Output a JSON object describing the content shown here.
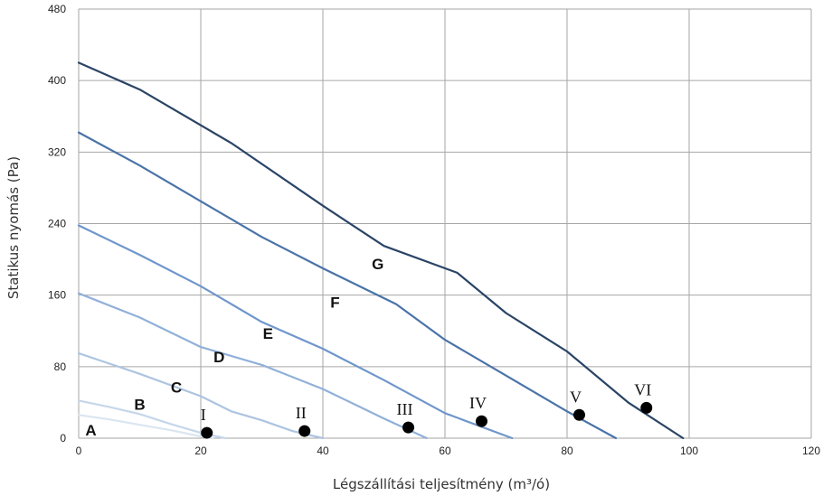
{
  "chart_data": {
    "type": "line",
    "xlabel": "Légszállítási teljesítmény (m³/ó)",
    "ylabel": "Statikus nyomás (Pa)",
    "xlim": [
      0,
      120
    ],
    "ylim": [
      0,
      480
    ],
    "xticks": [
      0,
      20,
      40,
      60,
      80,
      100,
      120
    ],
    "yticks": [
      0,
      80,
      160,
      240,
      320,
      400,
      480
    ],
    "grid": true,
    "series": [
      {
        "name": "A",
        "color": "#dbe5f1",
        "x": [
          0,
          5,
          10,
          15,
          20,
          22
        ],
        "y": [
          26,
          21,
          15,
          9,
          2,
          0
        ]
      },
      {
        "name": "B",
        "color": "#c6d6ea",
        "x": [
          0,
          5,
          10,
          15,
          20,
          24
        ],
        "y": [
          42,
          35,
          27,
          16,
          6,
          0
        ]
      },
      {
        "name": "C",
        "color": "#adc4e0",
        "x": [
          0,
          10,
          20,
          25,
          30,
          35,
          40
        ],
        "y": [
          95,
          72,
          47,
          30,
          20,
          8,
          0
        ]
      },
      {
        "name": "D",
        "color": "#90b0d9",
        "x": [
          0,
          10,
          20,
          30,
          40,
          50,
          57
        ],
        "y": [
          162,
          135,
          102,
          82,
          55,
          22,
          0
        ]
      },
      {
        "name": "E",
        "color": "#6f96cb",
        "x": [
          0,
          10,
          20,
          30,
          40,
          50,
          60,
          71
        ],
        "y": [
          238,
          205,
          170,
          130,
          100,
          65,
          28,
          0
        ]
      },
      {
        "name": "F",
        "color": "#4a73a8",
        "x": [
          0,
          10,
          20,
          30,
          40,
          52,
          60,
          70,
          80,
          88
        ],
        "y": [
          342,
          305,
          265,
          225,
          190,
          150,
          110,
          70,
          30,
          0
        ]
      },
      {
        "name": "G",
        "color": "#2a4466",
        "x": [
          0,
          10,
          25,
          40,
          50,
          62,
          70,
          80,
          90,
          99
        ],
        "y": [
          420,
          390,
          330,
          260,
          215,
          185,
          140,
          97,
          40,
          0
        ]
      }
    ],
    "curve_labels": [
      {
        "text": "A",
        "x": 2,
        "y": 9
      },
      {
        "text": "B",
        "x": 10,
        "y": 38
      },
      {
        "text": "C",
        "x": 16,
        "y": 57
      },
      {
        "text": "D",
        "x": 23,
        "y": 91
      },
      {
        "text": "E",
        "x": 31,
        "y": 117
      },
      {
        "text": "F",
        "x": 42,
        "y": 152
      },
      {
        "text": "G",
        "x": 49,
        "y": 195
      }
    ],
    "points": [
      {
        "label": "I",
        "x": 21,
        "y": 6
      },
      {
        "label": "II",
        "x": 37,
        "y": 8
      },
      {
        "label": "III",
        "x": 54,
        "y": 12
      },
      {
        "label": "IV",
        "x": 66,
        "y": 19
      },
      {
        "label": "V",
        "x": 82,
        "y": 26
      },
      {
        "label": "VI",
        "x": 93,
        "y": 34
      }
    ]
  }
}
